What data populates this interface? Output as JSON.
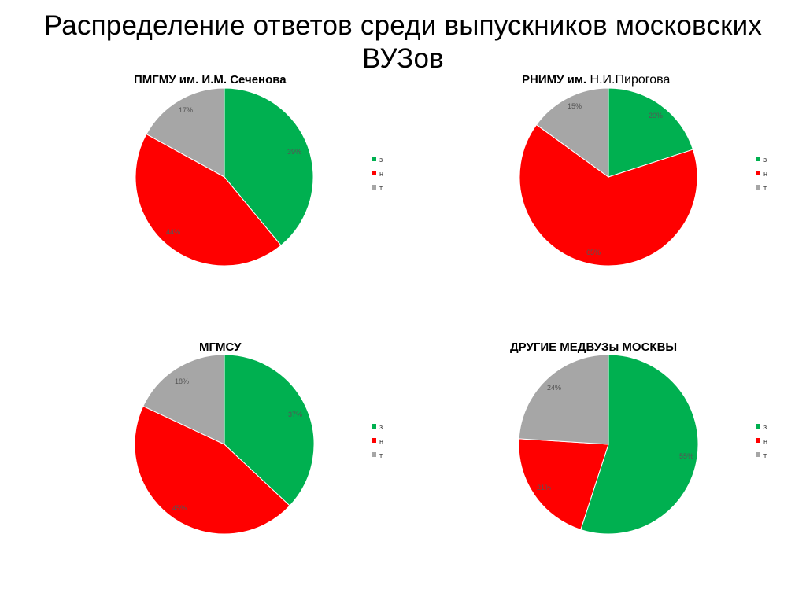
{
  "slide": {
    "title": "Распределение ответов среди выпускников московских ВУЗов"
  },
  "colors": {
    "з": "#00b050",
    "н": "#ff0000",
    "т": "#a6a6a6"
  },
  "chart_data": [
    {
      "type": "pie",
      "title": "ПМГМУ им. И.М. Сеченова",
      "title_suffix": "",
      "categories": [
        "з",
        "н",
        "т"
      ],
      "values": [
        39,
        44,
        17
      ],
      "labels": [
        "39%",
        "44%",
        "17%"
      ],
      "legend": "right"
    },
    {
      "type": "pie",
      "title": "РНИМУ им.",
      "title_suffix": "Н.И.Пирогова",
      "categories": [
        "з",
        "н",
        "т"
      ],
      "values": [
        20,
        65,
        15
      ],
      "labels": [
        "20%",
        "65%",
        "15%"
      ],
      "legend": "right"
    },
    {
      "type": "pie",
      "title": "МГМСУ",
      "title_suffix": "",
      "categories": [
        "з",
        "н",
        "т"
      ],
      "values": [
        37,
        45,
        18
      ],
      "labels": [
        "37%",
        "45%",
        "18%"
      ],
      "legend": "right"
    },
    {
      "type": "pie",
      "title": "ДРУГИЕ МЕДВУЗы МОСКВЫ",
      "title_suffix": "",
      "categories": [
        "з",
        "н",
        "т"
      ],
      "values": [
        55,
        21,
        24
      ],
      "labels": [
        "55%",
        "21%",
        "24%"
      ],
      "legend": "right"
    }
  ]
}
